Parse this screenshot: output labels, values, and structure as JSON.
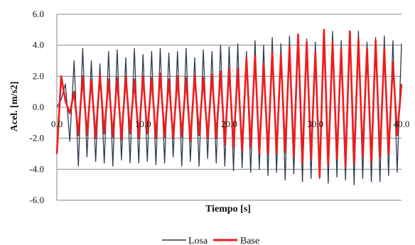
{
  "chart_data": {
    "type": "line",
    "xlabel": "Tiempo [s]",
    "ylabel": "Acel. [m/s2]",
    "xlim": [
      0,
      40
    ],
    "ylim": [
      -6,
      6
    ],
    "x_ticks": [
      "0.0",
      "10.0",
      "20.0",
      "30.0",
      "40.0"
    ],
    "y_ticks": [
      "6.0",
      "4.0",
      "2.0",
      "0.0",
      "-2.0",
      "-4.0",
      "-6.0"
    ],
    "grid": true,
    "legend_position": "bottom-center",
    "series": [
      {
        "name": "Losa",
        "color": "#2e3a4f",
        "x": [
          0,
          0.5,
          1,
          1.5,
          2,
          2.5,
          3,
          3.5,
          4,
          4.5,
          5,
          5.5,
          6,
          6.5,
          7,
          7.5,
          8,
          8.5,
          9,
          9.5,
          10,
          10.5,
          11,
          11.5,
          12,
          12.5,
          13,
          13.5,
          14,
          14.5,
          15,
          15.5,
          16,
          16.5,
          17,
          17.5,
          18,
          18.5,
          19,
          19.5,
          20,
          20.5,
          21,
          21.5,
          22,
          22.5,
          23,
          23.5,
          24,
          24.5,
          25,
          25.5,
          26,
          26.5,
          27,
          27.5,
          28,
          28.5,
          29,
          29.5,
          30,
          30.5,
          31,
          31.5,
          32,
          32.5,
          33,
          33.5,
          34,
          34.5,
          35,
          35.5,
          36,
          36.5,
          37,
          37.5,
          38,
          38.5,
          39,
          39.5,
          40
        ],
        "y": [
          0,
          0.5,
          1.5,
          -2.2,
          3.0,
          -3.8,
          3.8,
          -3.2,
          3.0,
          -3.5,
          2.8,
          -3.6,
          3.6,
          -3.8,
          3.7,
          -3.4,
          3.2,
          -3.6,
          3.8,
          -3.6,
          3.4,
          -3.5,
          3.6,
          -3.7,
          3.8,
          -3.6,
          3.5,
          -3.2,
          3.6,
          -3.8,
          3.8,
          -3.5,
          3.2,
          -3.8,
          3.7,
          -3.3,
          3.6,
          -3.6,
          4.0,
          -3.8,
          3.9,
          -4.1,
          4.1,
          -3.9,
          3.6,
          -4.2,
          4.3,
          -4.0,
          4.0,
          -4.4,
          4.5,
          -4.2,
          4.1,
          -4.7,
          4.6,
          -4.3,
          4.2,
          -4.8,
          4.4,
          -4.6,
          4.2,
          -4.6,
          4.5,
          -4.9,
          4.9,
          -4.5,
          4.3,
          -4.7,
          4.6,
          -5.0,
          4.9,
          -4.6,
          4.2,
          -4.8,
          4.5,
          -4.8,
          4.6,
          -4.4,
          4.3,
          -4.2,
          4.1
        ]
      },
      {
        "name": "Base",
        "color": "#ee1c1c",
        "x": [
          0,
          0.5,
          1,
          1.5,
          2,
          2.5,
          3,
          3.5,
          4,
          4.5,
          5,
          5.5,
          6,
          6.5,
          7,
          7.5,
          8,
          8.5,
          9,
          9.5,
          10,
          10.5,
          11,
          11.5,
          12,
          12.5,
          13,
          13.5,
          14,
          14.5,
          15,
          15.5,
          16,
          16.5,
          17,
          17.5,
          18,
          18.5,
          19,
          19.5,
          20,
          20.5,
          21,
          21.5,
          22,
          22.5,
          23,
          23.5,
          24,
          24.5,
          25,
          25.5,
          26,
          26.5,
          27,
          27.5,
          28,
          28.5,
          29,
          29.5,
          30,
          30.5,
          31,
          31.5,
          32,
          32.5,
          33,
          33.5,
          34,
          34.5,
          35,
          35.5,
          36,
          36.5,
          37,
          37.5,
          38,
          38.5,
          39,
          39.5,
          40
        ],
        "y": [
          -3.0,
          2.0,
          0.4,
          -0.4,
          1.0,
          -1.8,
          2.0,
          -1.8,
          1.8,
          -2.0,
          2.1,
          -1.7,
          1.8,
          -1.9,
          1.9,
          -2.1,
          2.0,
          -1.7,
          1.8,
          -2.0,
          2.0,
          -1.7,
          1.9,
          -2.0,
          2.2,
          -1.9,
          1.8,
          -2.0,
          2.0,
          -1.9,
          1.9,
          -2.2,
          2.1,
          -1.8,
          1.9,
          -2.0,
          2.1,
          -2.0,
          2.3,
          -2.4,
          2.5,
          -2.6,
          2.5,
          -2.8,
          3.2,
          -2.6,
          3.3,
          -3.0,
          2.8,
          -3.0,
          3.6,
          -3.0,
          3.4,
          -2.9,
          3.9,
          -3.2,
          4.7,
          -3.6,
          4.2,
          -3.3,
          3.6,
          -4.5,
          5.0,
          -3.7,
          4.2,
          -3.3,
          3.8,
          -3.8,
          4.9,
          -3.6,
          4.4,
          -3.2,
          3.8,
          -3.6,
          4.3,
          -3.2,
          3.8,
          -3.0,
          2.9,
          -1.8,
          1.5
        ]
      }
    ]
  }
}
